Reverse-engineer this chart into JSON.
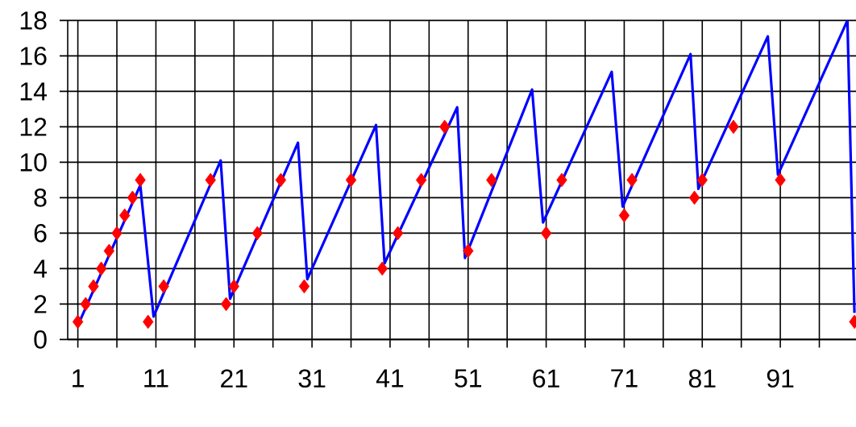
{
  "chart_data": {
    "type": "line",
    "xlim": [
      -0.3,
      100.7
    ],
    "ylim": [
      0,
      18
    ],
    "xticks": [
      {
        "value": 1,
        "label": "1"
      },
      {
        "value": 6,
        "label": null
      },
      {
        "value": 11,
        "label": "11"
      },
      {
        "value": 16,
        "label": null
      },
      {
        "value": 21,
        "label": "21"
      },
      {
        "value": 26,
        "label": null
      },
      {
        "value": 31,
        "label": "31"
      },
      {
        "value": 36,
        "label": null
      },
      {
        "value": 41,
        "label": "41"
      },
      {
        "value": 46,
        "label": null
      },
      {
        "value": 51,
        "label": "51"
      },
      {
        "value": 56,
        "label": null
      },
      {
        "value": 61,
        "label": "61"
      },
      {
        "value": 66,
        "label": null
      },
      {
        "value": 71,
        "label": "71"
      },
      {
        "value": 76,
        "label": null
      },
      {
        "value": 81,
        "label": "81"
      },
      {
        "value": 86,
        "label": null
      },
      {
        "value": 91,
        "label": "91"
      },
      {
        "value": 96,
        "label": null
      }
    ],
    "yticks": [
      0,
      2,
      4,
      6,
      8,
      10,
      12,
      14,
      16,
      18
    ],
    "grid": true,
    "series": [
      {
        "color": "#0000ff",
        "marker": "none",
        "x": [
          1,
          9,
          10.7,
          19.3,
          20.5,
          29.2,
          30.4,
          39.2,
          40.3,
          49.6,
          50.6,
          59.2,
          60.6,
          69.4,
          70.8,
          79.5,
          80.5,
          89.4,
          90.7,
          99.6,
          100.5
        ],
        "values": [
          0.8,
          8.7,
          1.3,
          10.1,
          2.3,
          11.1,
          3.4,
          12.1,
          4.3,
          13.1,
          4.6,
          14.1,
          6.6,
          15.1,
          7.5,
          16.1,
          8.5,
          17.1,
          9.3,
          18,
          1.5
        ]
      },
      {
        "type": "scatter",
        "color": "#ff0000",
        "marker": "diamond",
        "x": [
          1,
          2,
          3,
          4,
          5,
          6,
          7,
          8,
          9,
          10,
          12,
          18,
          20,
          21,
          24,
          27,
          30,
          36,
          40,
          42,
          45,
          48,
          51,
          54,
          61,
          63,
          71,
          72,
          80,
          81,
          85,
          91,
          100.5
        ],
        "values": [
          1,
          2,
          3,
          4,
          5,
          6,
          7,
          8,
          9,
          1,
          3,
          9,
          2,
          3,
          6,
          9,
          3,
          9,
          4,
          6,
          9,
          12,
          5,
          9,
          6,
          9,
          7,
          9,
          8,
          9,
          12,
          9,
          1
        ]
      }
    ]
  }
}
